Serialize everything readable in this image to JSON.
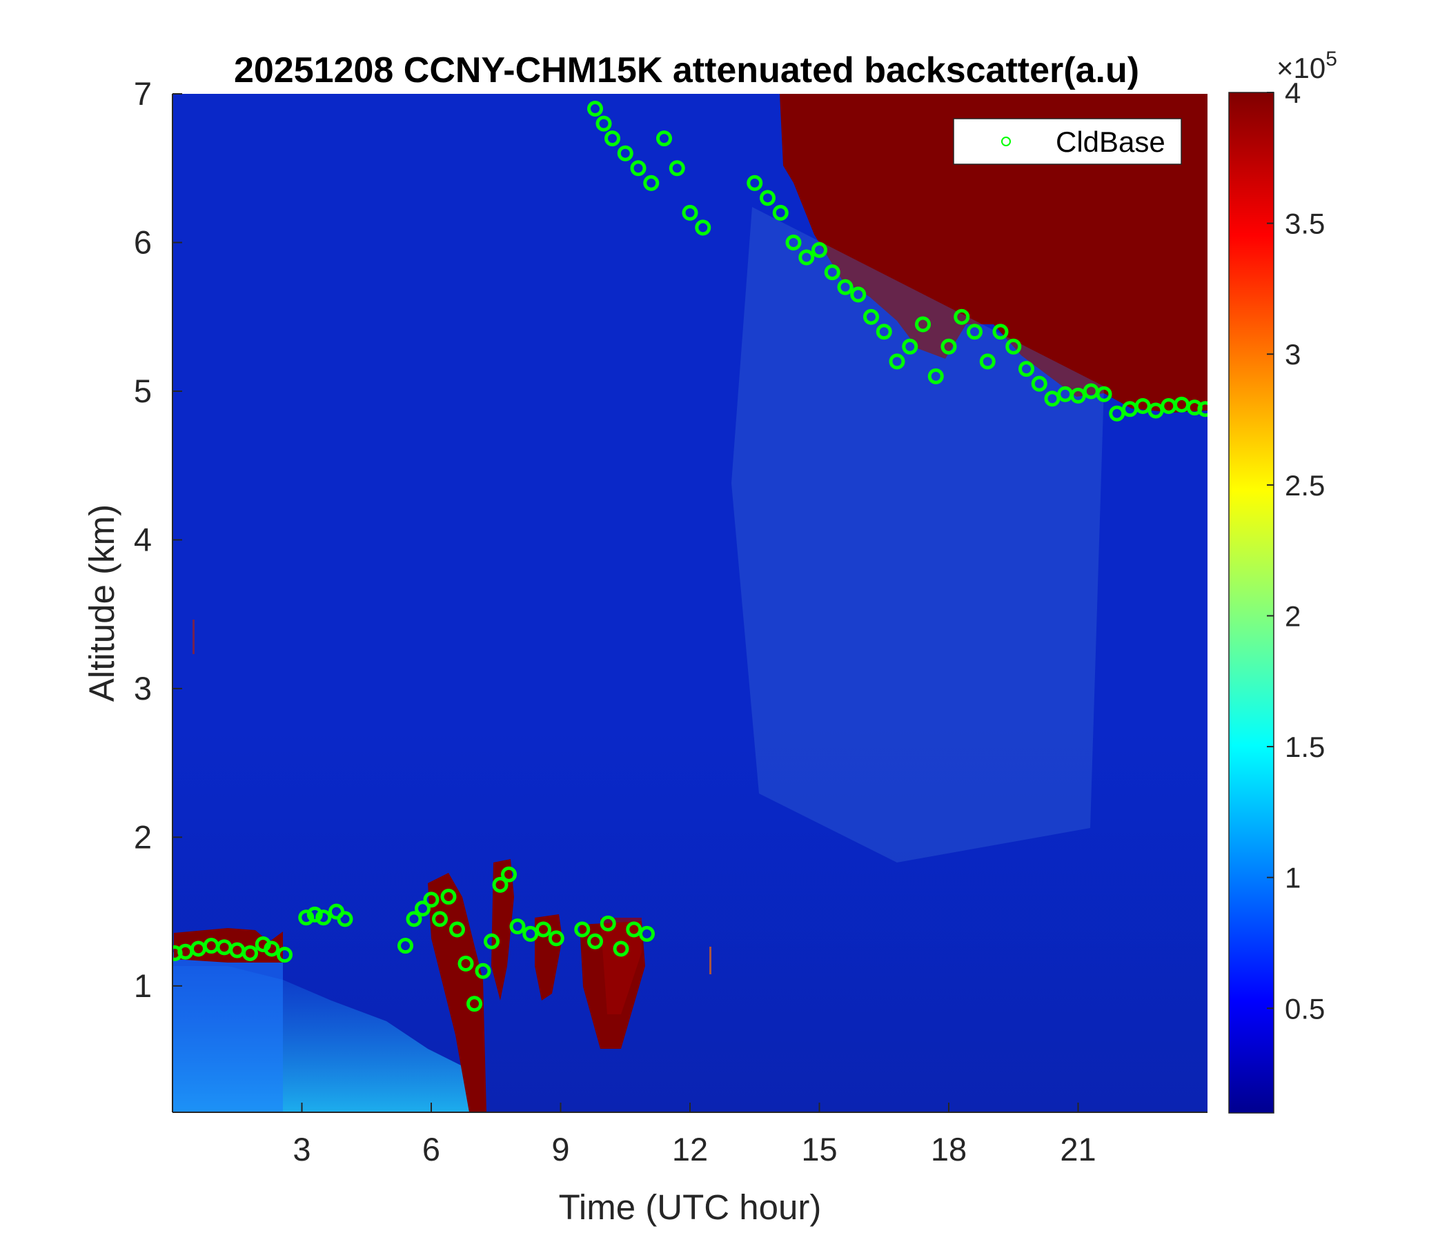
{
  "chart_data": {
    "type": "heatmap",
    "title": "20251208 CCNY-CHM15K attenuated backscatter(a.u)",
    "xlabel": "Time (UTC hour)",
    "ylabel": "Altitude (km)",
    "xlim": [
      0,
      24
    ],
    "ylim": [
      0.15,
      7
    ],
    "xticks": [
      "3",
      "6",
      "9",
      "12",
      "15",
      "18",
      "21"
    ],
    "xtick_values": [
      3,
      6,
      9,
      12,
      15,
      18,
      21
    ],
    "yticks": [
      "1",
      "2",
      "3",
      "4",
      "5",
      "6",
      "7"
    ],
    "ytick_values": [
      1,
      2,
      3,
      4,
      5,
      6,
      7
    ],
    "colorbar": {
      "colormap": "jet",
      "range": [
        10000,
        400000
      ],
      "ticks": [
        "0.5",
        "1",
        "1.5",
        "2",
        "2.5",
        "3",
        "3.5",
        "4"
      ],
      "tick_values": [
        0.5,
        1,
        1.5,
        2,
        2.5,
        3,
        3.5,
        4
      ],
      "multiplier_base": "×10",
      "multiplier_exp": "5"
    },
    "legend": {
      "placement": "top-right",
      "entries": [
        "CldBase"
      ]
    },
    "series": [
      {
        "name": "CldBase",
        "marker": "open-circle",
        "color": "#00ff00",
        "x": [
          0.05,
          0.3,
          0.6,
          0.9,
          1.2,
          1.5,
          1.8,
          2.1,
          2.3,
          2.6,
          3.1,
          3.3,
          3.5,
          3.8,
          4.0,
          5.4,
          5.6,
          5.8,
          6.0,
          6.2,
          6.4,
          6.6,
          6.8,
          7.0,
          7.2,
          7.4,
          7.6,
          7.8,
          8.0,
          8.3,
          8.6,
          8.9,
          9.5,
          9.8,
          10.1,
          10.4,
          10.7,
          11.0,
          9.8,
          10.0,
          10.2,
          10.5,
          10.8,
          11.1,
          11.4,
          11.7,
          12.0,
          12.3,
          13.5,
          13.8,
          14.1,
          14.4,
          14.7,
          15.0,
          15.3,
          15.6,
          15.9,
          16.2,
          16.5,
          16.8,
          17.1,
          17.4,
          17.7,
          18.0,
          18.3,
          18.6,
          18.9,
          19.2,
          19.5,
          19.8,
          20.1,
          20.4,
          20.7,
          21.0,
          21.3,
          21.6,
          21.9,
          22.2,
          22.5,
          22.8,
          23.1,
          23.4,
          23.7,
          23.95
        ],
        "y": [
          1.22,
          1.23,
          1.25,
          1.27,
          1.26,
          1.24,
          1.22,
          1.28,
          1.25,
          1.21,
          1.46,
          1.48,
          1.46,
          1.5,
          1.45,
          1.27,
          1.45,
          1.52,
          1.58,
          1.45,
          1.6,
          1.38,
          1.15,
          0.88,
          1.1,
          1.3,
          1.68,
          1.75,
          1.4,
          1.35,
          1.38,
          1.32,
          1.38,
          1.3,
          1.42,
          1.25,
          1.38,
          1.35,
          6.9,
          6.8,
          6.7,
          6.6,
          6.5,
          6.4,
          6.7,
          6.5,
          6.2,
          6.1,
          6.4,
          6.3,
          6.2,
          6.0,
          5.9,
          5.95,
          5.8,
          5.7,
          5.65,
          5.5,
          5.4,
          5.2,
          5.3,
          5.45,
          5.1,
          5.3,
          5.5,
          5.4,
          5.2,
          5.4,
          5.3,
          5.15,
          5.05,
          4.95,
          4.98,
          4.97,
          5.0,
          4.98,
          4.85,
          4.88,
          4.9,
          4.87,
          4.9,
          4.91,
          4.89,
          4.88
        ]
      }
    ]
  }
}
